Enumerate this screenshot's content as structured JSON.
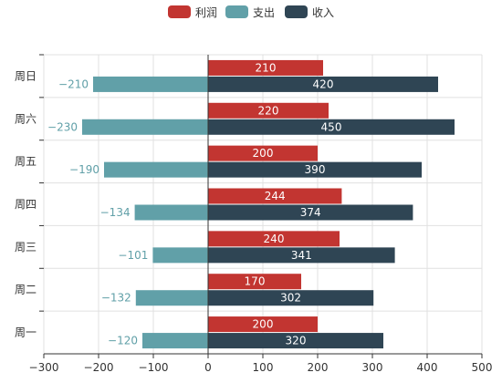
{
  "chart_data": {
    "type": "bar",
    "orientation": "horizontal",
    "categories": [
      "周一",
      "周二",
      "周三",
      "周四",
      "周五",
      "周六",
      "周日"
    ],
    "series": [
      {
        "name": "利润",
        "values": [
          200,
          170,
          240,
          244,
          200,
          220,
          210
        ],
        "color": "#c23531",
        "label_color": "#ffffff"
      },
      {
        "name": "支出",
        "values": [
          -120,
          -132,
          -101,
          -134,
          -190,
          -230,
          -210
        ],
        "color": "#61a0a8",
        "label_color": "#61a0a8"
      },
      {
        "name": "收入",
        "values": [
          320,
          302,
          341,
          374,
          390,
          450,
          420
        ],
        "color": "#2f4554",
        "label_color": "#ffffff"
      }
    ],
    "xlim": [
      -300,
      500
    ],
    "xticks": [
      -300,
      -200,
      -100,
      0,
      100,
      200,
      300,
      400,
      500
    ],
    "legend_position": "top-center",
    "grid": true
  }
}
